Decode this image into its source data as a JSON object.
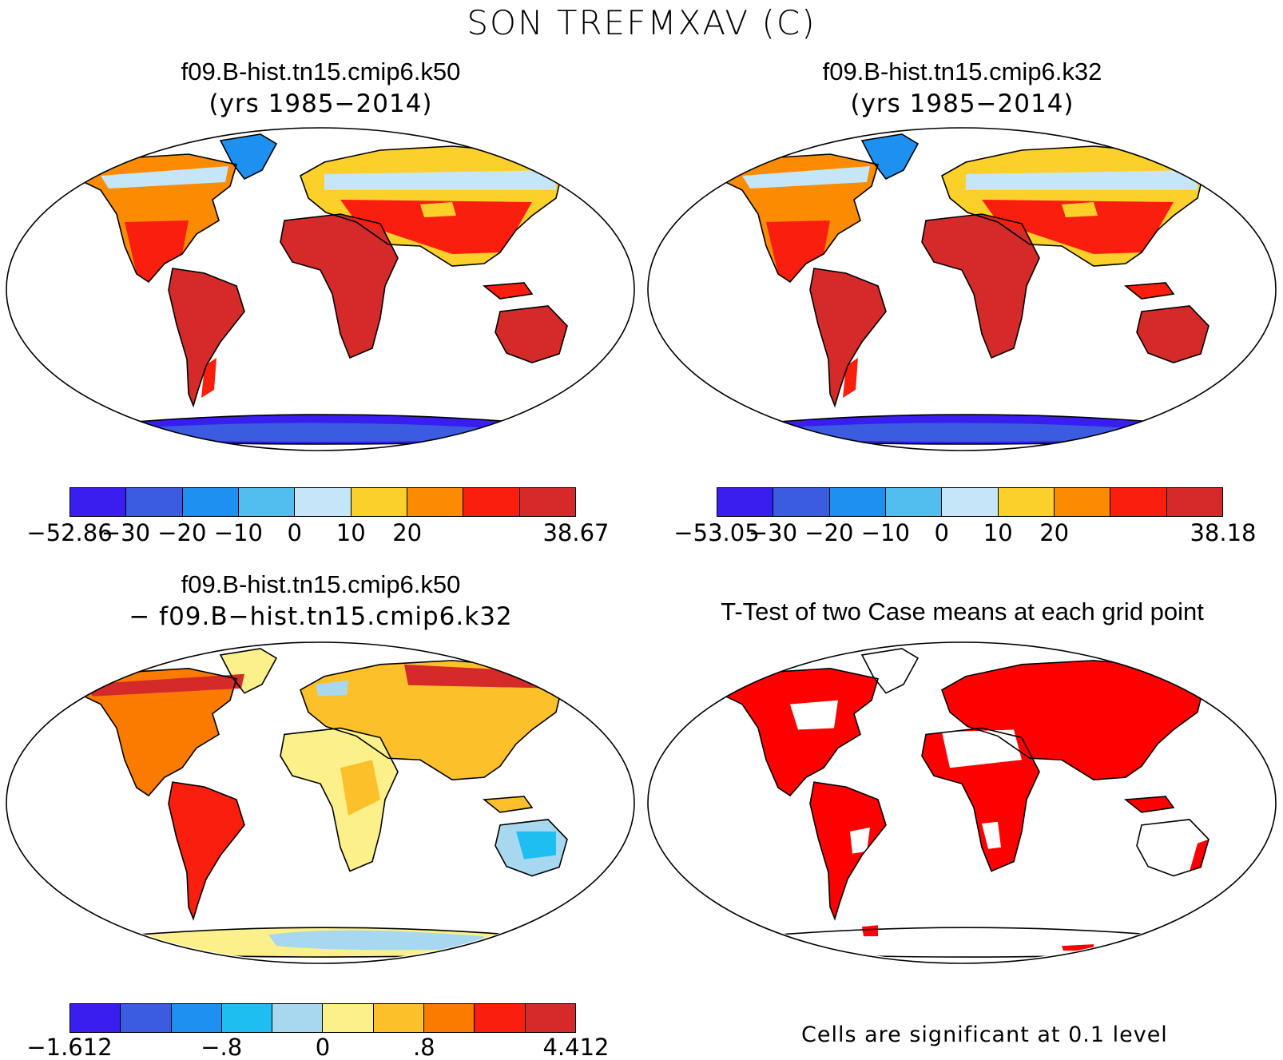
{
  "figure": {
    "title": "SON TREFMXAV (C)"
  },
  "panels": [
    {
      "id": "p1",
      "title": "f09.B-hist.tn15.cmip6.k50",
      "subtitle": "(yrs 1985−2014)",
      "map_type": "field",
      "colors": [
        "#3a1ef0",
        "#3b5ce0",
        "#1e90f0",
        "#52bef0",
        "#c5e6f8",
        "#fbd02a",
        "#fb8b00",
        "#fa1e0e",
        "#d42a2a"
      ],
      "tick_labels": [
        "−52.86",
        "−30",
        "−20",
        "−10",
        "0",
        "10",
        "20",
        "38.67"
      ]
    },
    {
      "id": "p2",
      "title": "f09.B-hist.tn15.cmip6.k32",
      "subtitle": "(yrs 1985−2014)",
      "map_type": "field",
      "colors": [
        "#3a1ef0",
        "#3b5ce0",
        "#1e90f0",
        "#52bef0",
        "#c5e6f8",
        "#fbd02a",
        "#fb8b00",
        "#fa1e0e",
        "#d42a2a"
      ],
      "tick_labels": [
        "−53.05",
        "−30",
        "−20",
        "−10",
        "0",
        "10",
        "20",
        "38.18"
      ]
    },
    {
      "id": "p3",
      "title": "f09.B-hist.tn15.cmip6.k50",
      "subtitle": "− f09.B−hist.tn15.cmip6.k32",
      "map_type": "difference",
      "colors": [
        "#3a1ef0",
        "#3b5ce0",
        "#1e90f0",
        "#1ebef0",
        "#a8d8f0",
        "#fcf08a",
        "#fbc02a",
        "#fb7a00",
        "#fa1e0e",
        "#d42a2a"
      ],
      "tick_labels": [
        "−1.612",
        "−.8",
        "0",
        ".8",
        "4.412"
      ]
    },
    {
      "id": "p4",
      "title": "T-Test of two Case means at each grid point",
      "map_type": "significance",
      "note": "Cells are significant at 0.1 level"
    }
  ],
  "icons": [
    "world-map"
  ]
}
